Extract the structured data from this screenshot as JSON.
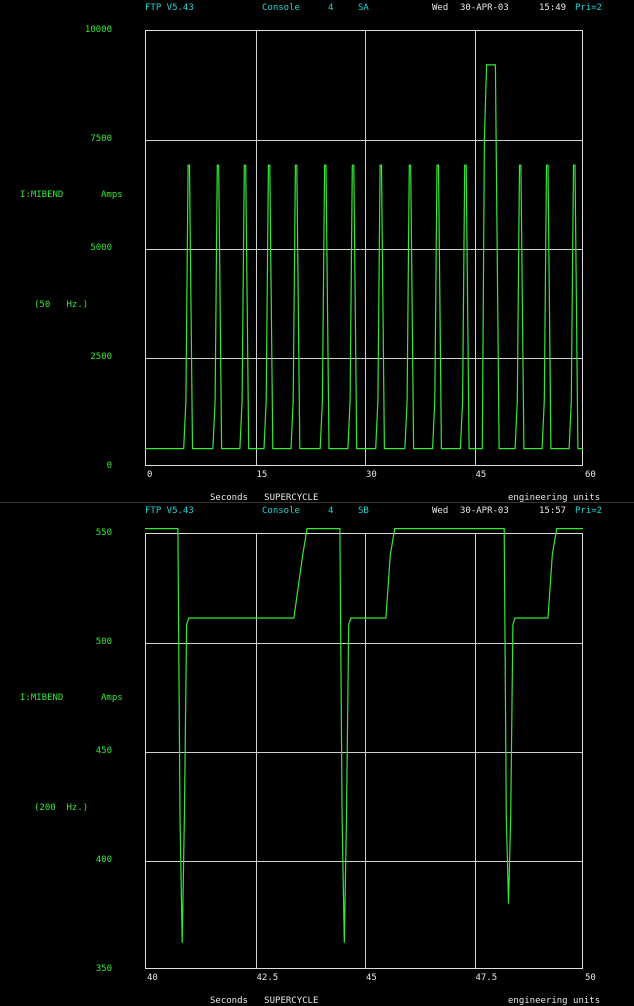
{
  "panels": [
    {
      "header": {
        "ftp": "FTP V5.43",
        "console": "Console",
        "console_num": "4",
        "id": "SA",
        "day": "Wed",
        "date": "30-APR-03",
        "time": "15:49",
        "pri": "Pri=2"
      },
      "device": "I:MIBEND",
      "units": "Amps",
      "rate": "(50   Hz.)",
      "footer_left": "Seconds   SUPERCYCLE",
      "footer_right": "engineering units",
      "y_tick_labels": [
        "10000",
        "7500",
        "5000",
        "2500",
        "0"
      ],
      "x_tick_labels": [
        "0",
        "15",
        "30",
        "45",
        "60"
      ]
    },
    {
      "header": {
        "ftp": "FTP V5.43",
        "console": "Console",
        "console_num": "4",
        "id": "SB",
        "day": "Wed",
        "date": "30-APR-03",
        "time": "15:57",
        "pri": "Pri=2"
      },
      "device": "I:MIBEND",
      "units": "Amps",
      "rate": "(200  Hz.)",
      "footer_left": "Seconds   SUPERCYCLE",
      "footer_right": "engineering units",
      "y_tick_labels": [
        "550",
        "500",
        "450",
        "400",
        "350"
      ],
      "x_tick_labels": [
        "40",
        "42.5",
        "45",
        "47.5",
        "50"
      ]
    }
  ],
  "colors": {
    "trace": "#35e835",
    "grid": "#cfcfcf",
    "header": "#19d8d8",
    "label": "#32e832",
    "text": "#e8e8e8"
  },
  "chart_data": [
    {
      "type": "line",
      "xlabel": "Seconds",
      "ylabel": "I:MIBEND Amps",
      "xlim": [
        0,
        60
      ],
      "ylim": [
        0,
        10000
      ],
      "x_ticks": [
        0,
        15,
        30,
        45,
        60
      ],
      "y_ticks": [
        0,
        2500,
        5000,
        7500,
        10000
      ],
      "grid": true,
      "series": [
        {
          "points": [
            [
              0,
              400
            ],
            [
              5.3,
              400
            ],
            [
              5.6,
              1500
            ],
            [
              5.9,
              6900
            ],
            [
              6.1,
              6900
            ],
            [
              6.5,
              400
            ],
            [
              9.3,
              400
            ],
            [
              9.6,
              1500
            ],
            [
              9.9,
              6900
            ],
            [
              10.1,
              6900
            ],
            [
              10.5,
              400
            ],
            [
              13,
              400
            ],
            [
              13.3,
              1500
            ],
            [
              13.6,
              6900
            ],
            [
              13.8,
              6900
            ],
            [
              14.2,
              400
            ],
            [
              16.3,
              400
            ],
            [
              16.6,
              1500
            ],
            [
              16.9,
              6900
            ],
            [
              17.1,
              6900
            ],
            [
              17.5,
              400
            ],
            [
              20,
              400
            ],
            [
              20.3,
              1500
            ],
            [
              20.6,
              6900
            ],
            [
              20.8,
              6900
            ],
            [
              21.2,
              400
            ],
            [
              24,
              400
            ],
            [
              24.3,
              1500
            ],
            [
              24.6,
              6900
            ],
            [
              24.8,
              6900
            ],
            [
              25.2,
              400
            ],
            [
              27.8,
              400
            ],
            [
              28.1,
              1500
            ],
            [
              28.4,
              6900
            ],
            [
              28.6,
              6900
            ],
            [
              29,
              400
            ],
            [
              31.6,
              400
            ],
            [
              31.9,
              1500
            ],
            [
              32.2,
              6900
            ],
            [
              32.4,
              6900
            ],
            [
              32.8,
              400
            ],
            [
              35.6,
              400
            ],
            [
              35.9,
              1500
            ],
            [
              36.2,
              6900
            ],
            [
              36.4,
              6900
            ],
            [
              36.8,
              400
            ],
            [
              39.4,
              400
            ],
            [
              39.7,
              1500
            ],
            [
              40,
              6900
            ],
            [
              40.2,
              6900
            ],
            [
              40.6,
              400
            ],
            [
              43.2,
              400
            ],
            [
              43.5,
              1500
            ],
            [
              43.8,
              6900
            ],
            [
              44,
              6900
            ],
            [
              44.4,
              400
            ],
            [
              46.2,
              400
            ],
            [
              46.5,
              7500
            ],
            [
              46.8,
              9200
            ],
            [
              48,
              9200
            ],
            [
              48.5,
              400
            ],
            [
              50.7,
              400
            ],
            [
              51,
              1500
            ],
            [
              51.3,
              6900
            ],
            [
              51.5,
              6900
            ],
            [
              51.9,
              400
            ],
            [
              54.4,
              400
            ],
            [
              54.7,
              1500
            ],
            [
              55,
              6900
            ],
            [
              55.2,
              6900
            ],
            [
              55.6,
              400
            ],
            [
              58.1,
              400
            ],
            [
              58.4,
              1500
            ],
            [
              58.7,
              6900
            ],
            [
              58.9,
              6900
            ],
            [
              59.3,
              400
            ],
            [
              60,
              400
            ]
          ]
        }
      ]
    },
    {
      "type": "line",
      "xlabel": "Seconds",
      "ylabel": "I:MIBEND Amps",
      "xlim": [
        40,
        50
      ],
      "ylim": [
        350,
        550
      ],
      "x_ticks": [
        40,
        42.5,
        45,
        47.5,
        50
      ],
      "y_ticks": [
        350,
        400,
        450,
        500,
        550
      ],
      "grid": true,
      "series": [
        {
          "points": [
            [
              40,
              552
            ],
            [
              40.75,
              552
            ],
            [
              40.8,
              420
            ],
            [
              40.85,
              362
            ],
            [
              40.9,
              420
            ],
            [
              40.95,
              508
            ],
            [
              41,
              511
            ],
            [
              43.4,
              511
            ],
            [
              43.6,
              540
            ],
            [
              43.7,
              552
            ],
            [
              44.45,
              552
            ],
            [
              44.5,
              420
            ],
            [
              44.55,
              362
            ],
            [
              44.6,
              420
            ],
            [
              44.65,
              508
            ],
            [
              44.7,
              511
            ],
            [
              45.5,
              511
            ],
            [
              45.6,
              540
            ],
            [
              45.7,
              552
            ],
            [
              48.2,
              552
            ],
            [
              48.25,
              420
            ],
            [
              48.3,
              380
            ],
            [
              48.35,
              420
            ],
            [
              48.4,
              508
            ],
            [
              48.45,
              511
            ],
            [
              49.2,
              511
            ],
            [
              49.3,
              540
            ],
            [
              49.4,
              552
            ],
            [
              50,
              552
            ]
          ]
        }
      ]
    }
  ]
}
